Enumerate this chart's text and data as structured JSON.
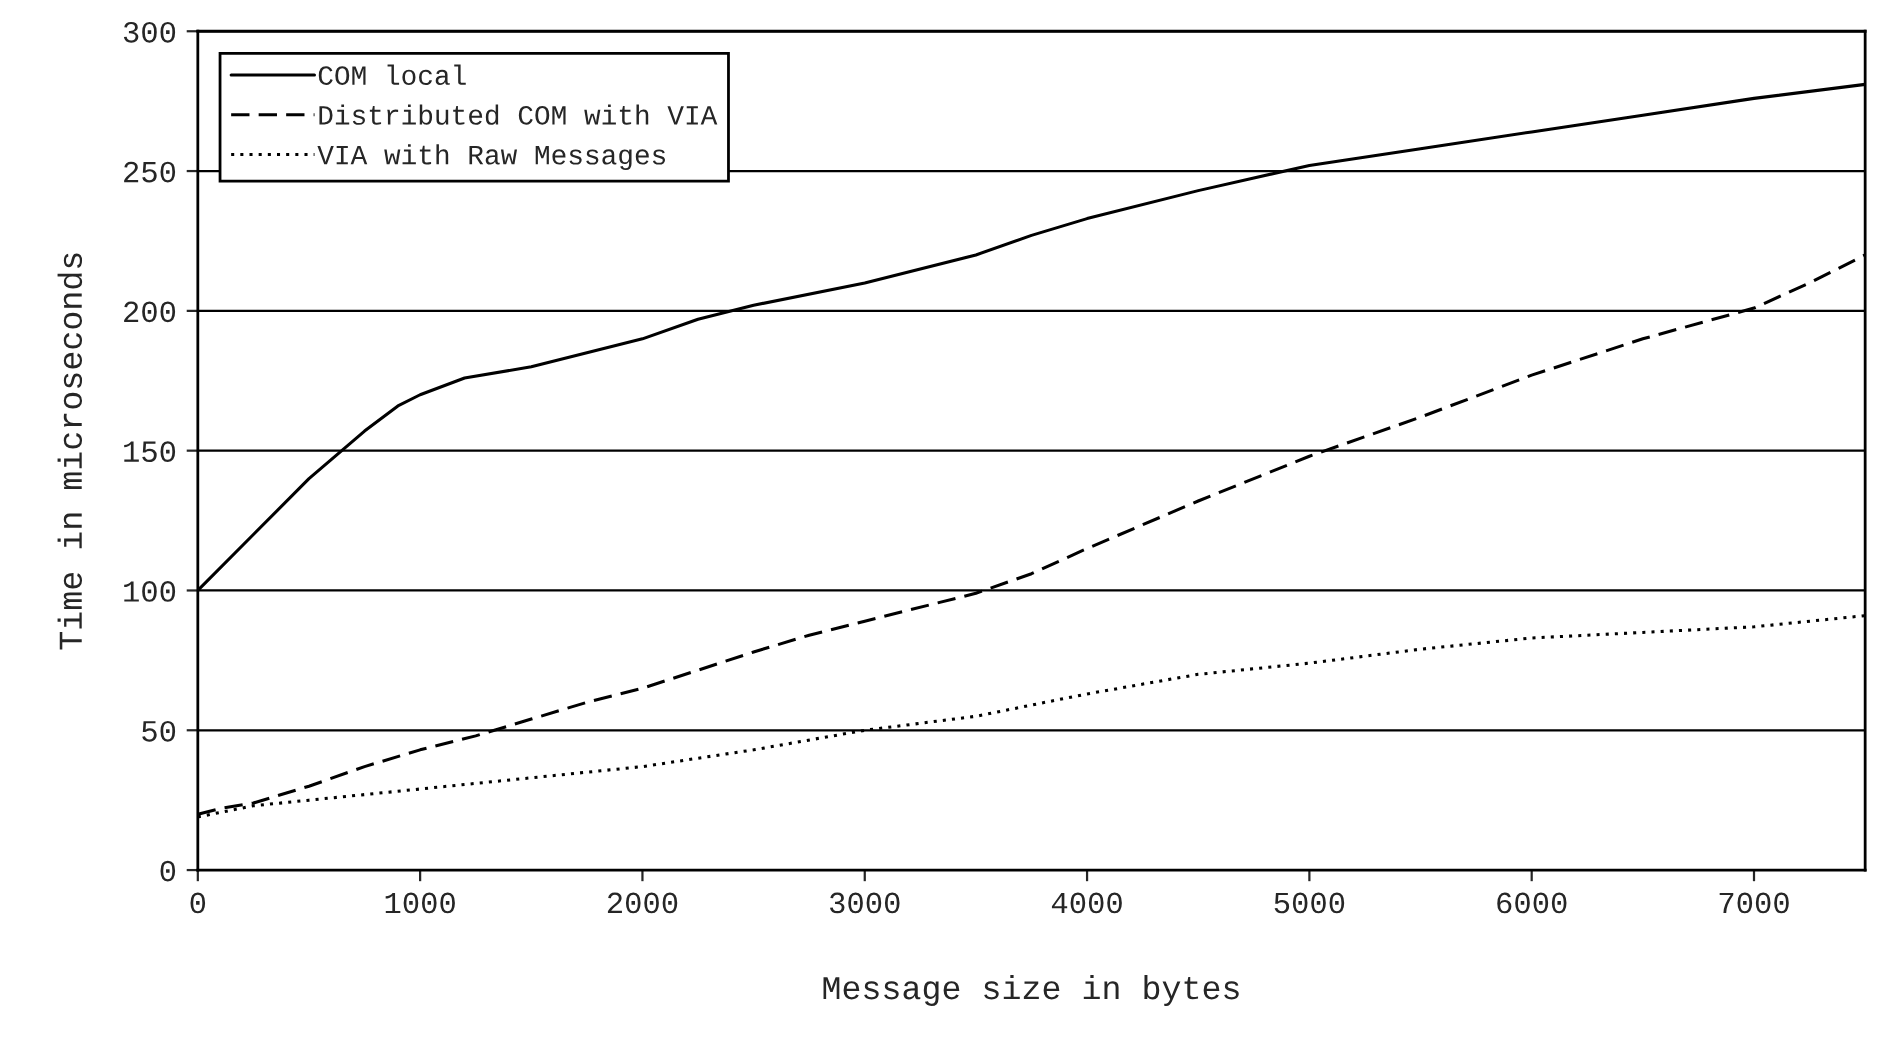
{
  "chart_data": {
    "type": "line",
    "xlabel": "Message size in bytes",
    "ylabel": "Time in microseconds",
    "xlim": [
      0,
      7500
    ],
    "xticks": [
      0,
      1000,
      2000,
      3000,
      4000,
      5000,
      6000,
      7000
    ],
    "ylim": [
      0,
      300
    ],
    "yticks": [
      0,
      50,
      100,
      150,
      200,
      250,
      300
    ],
    "grid": "y",
    "legend": "top left",
    "series": [
      {
        "name": "COM local",
        "color": "#000000",
        "line_style": "solid",
        "x": [
          0,
          250,
          500,
          750,
          900,
          1000,
          1200,
          1500,
          2000,
          2250,
          2500,
          3000,
          3500,
          3750,
          4000,
          4500,
          5000,
          5500,
          6000,
          6500,
          7000,
          7500
        ],
        "values": [
          100,
          120,
          140,
          157,
          166,
          170,
          176,
          180,
          190,
          197,
          202,
          210,
          220,
          227,
          233,
          243,
          252,
          258,
          264,
          270,
          276,
          281
        ]
      },
      {
        "name": "Distributed COM with VIA",
        "color": "#000000",
        "line_style": "dashed",
        "x": [
          0,
          100,
          250,
          500,
          750,
          1000,
          1250,
          1500,
          1750,
          2000,
          2500,
          2750,
          3000,
          3500,
          3750,
          4000,
          4500,
          5000,
          5500,
          6000,
          6500,
          7000,
          7250,
          7500
        ],
        "values": [
          20,
          22,
          24,
          30,
          37,
          43,
          48,
          54,
          60,
          65,
          78,
          84,
          89,
          99,
          106,
          115,
          132,
          148,
          162,
          177,
          190,
          201,
          210,
          220
        ]
      },
      {
        "name": "VIA with Raw Messages",
        "color": "#000000",
        "line_style": "dotted",
        "x": [
          0,
          250,
          500,
          1000,
          1500,
          2000,
          2500,
          3000,
          3500,
          3750,
          4000,
          4500,
          5000,
          5500,
          6000,
          6500,
          7000,
          7500
        ],
        "values": [
          19,
          23,
          25,
          29,
          33,
          37,
          43,
          50,
          55,
          59,
          63,
          70,
          74,
          79,
          83,
          85,
          87,
          91
        ]
      }
    ]
  }
}
